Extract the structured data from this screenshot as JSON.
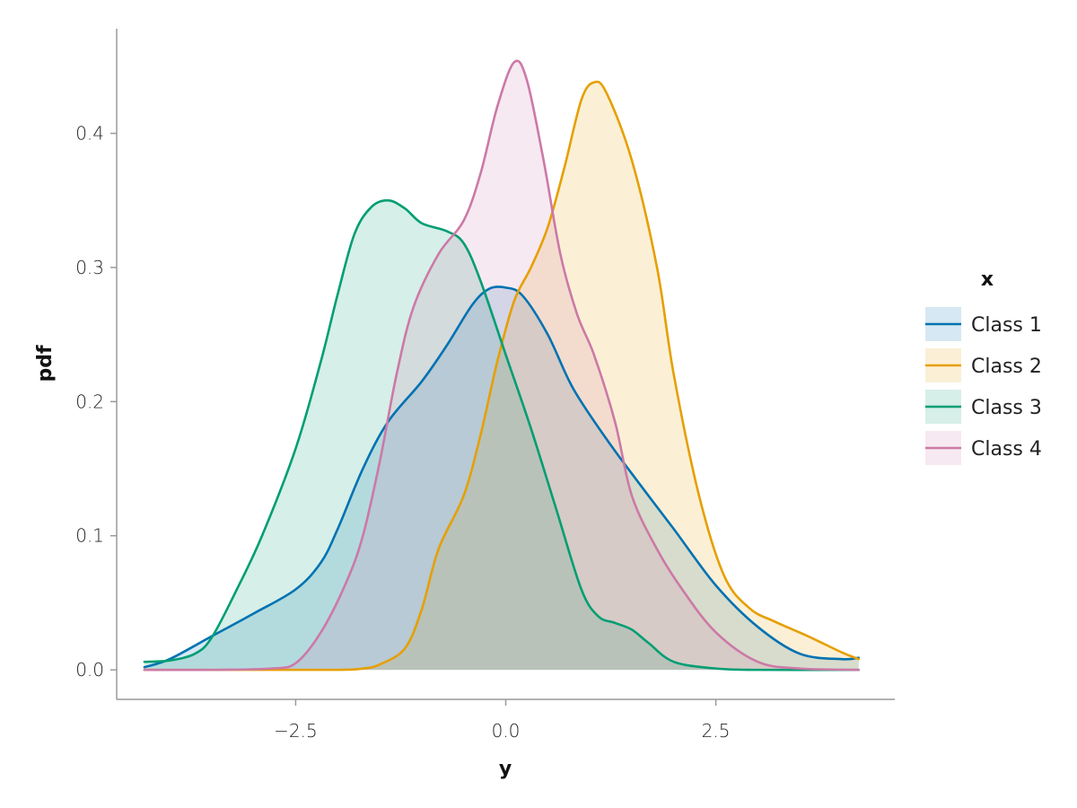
{
  "chart_data": {
    "type": "area",
    "xlabel": "y",
    "ylabel": "pdf",
    "xlim": [
      -4.63,
      4.63
    ],
    "ylim": [
      -0.022,
      0.478
    ],
    "x_ticks": [
      -2.5,
      0.0,
      2.5
    ],
    "x_tick_labels": [
      "−2.5",
      "0.0",
      "2.5"
    ],
    "y_ticks": [
      0.0,
      0.1,
      0.2,
      0.3,
      0.4
    ],
    "y_tick_labels": [
      "0.0",
      "0.1",
      "0.2",
      "0.3",
      "0.4"
    ],
    "grid": false,
    "legend": {
      "title": "x",
      "placement": "right"
    },
    "series": [
      {
        "name": "Class 1",
        "color": "#0072B2",
        "points": [
          [
            -4.3,
            0.002
          ],
          [
            -4.0,
            0.008
          ],
          [
            -3.5,
            0.025
          ],
          [
            -3.0,
            0.042
          ],
          [
            -2.5,
            0.06
          ],
          [
            -2.2,
            0.08
          ],
          [
            -2.0,
            0.105
          ],
          [
            -1.7,
            0.15
          ],
          [
            -1.4,
            0.185
          ],
          [
            -1.0,
            0.215
          ],
          [
            -0.7,
            0.242
          ],
          [
            -0.4,
            0.272
          ],
          [
            -0.2,
            0.284
          ],
          [
            0.0,
            0.285
          ],
          [
            0.2,
            0.279
          ],
          [
            0.5,
            0.25
          ],
          [
            0.8,
            0.21
          ],
          [
            1.2,
            0.172
          ],
          [
            1.6,
            0.138
          ],
          [
            2.0,
            0.105
          ],
          [
            2.5,
            0.063
          ],
          [
            3.0,
            0.032
          ],
          [
            3.5,
            0.012
          ],
          [
            4.0,
            0.008
          ],
          [
            4.2,
            0.009
          ]
        ]
      },
      {
        "name": "Class 2",
        "color": "#E69F00",
        "points": [
          [
            -4.3,
            0.0
          ],
          [
            -3.0,
            0.0
          ],
          [
            -2.0,
            0.0
          ],
          [
            -1.7,
            0.001
          ],
          [
            -1.5,
            0.004
          ],
          [
            -1.2,
            0.016
          ],
          [
            -1.0,
            0.045
          ],
          [
            -0.8,
            0.09
          ],
          [
            -0.5,
            0.13
          ],
          [
            -0.3,
            0.175
          ],
          [
            -0.1,
            0.23
          ],
          [
            0.1,
            0.275
          ],
          [
            0.3,
            0.3
          ],
          [
            0.5,
            0.33
          ],
          [
            0.7,
            0.375
          ],
          [
            0.9,
            0.425
          ],
          [
            1.05,
            0.438
          ],
          [
            1.2,
            0.43
          ],
          [
            1.5,
            0.38
          ],
          [
            1.8,
            0.3
          ],
          [
            2.0,
            0.22
          ],
          [
            2.3,
            0.13
          ],
          [
            2.6,
            0.07
          ],
          [
            2.9,
            0.046
          ],
          [
            3.2,
            0.036
          ],
          [
            3.6,
            0.025
          ],
          [
            4.0,
            0.013
          ],
          [
            4.2,
            0.008
          ]
        ]
      },
      {
        "name": "Class 3",
        "color": "#009E73",
        "points": [
          [
            -4.3,
            0.006
          ],
          [
            -4.0,
            0.007
          ],
          [
            -3.7,
            0.012
          ],
          [
            -3.5,
            0.024
          ],
          [
            -3.2,
            0.06
          ],
          [
            -2.9,
            0.1
          ],
          [
            -2.5,
            0.165
          ],
          [
            -2.2,
            0.23
          ],
          [
            -2.0,
            0.28
          ],
          [
            -1.8,
            0.325
          ],
          [
            -1.6,
            0.345
          ],
          [
            -1.4,
            0.35
          ],
          [
            -1.2,
            0.344
          ],
          [
            -1.0,
            0.333
          ],
          [
            -0.7,
            0.327
          ],
          [
            -0.5,
            0.318
          ],
          [
            -0.3,
            0.29
          ],
          [
            0.0,
            0.235
          ],
          [
            0.3,
            0.18
          ],
          [
            0.6,
            0.12
          ],
          [
            0.9,
            0.06
          ],
          [
            1.1,
            0.04
          ],
          [
            1.3,
            0.035
          ],
          [
            1.5,
            0.03
          ],
          [
            1.7,
            0.02
          ],
          [
            2.0,
            0.006
          ],
          [
            2.5,
            0.001
          ],
          [
            3.0,
            0.0
          ],
          [
            4.2,
            0.0
          ]
        ]
      },
      {
        "name": "Class 4",
        "color": "#CC79A7",
        "points": [
          [
            -4.3,
            0.0
          ],
          [
            -3.5,
            0.0
          ],
          [
            -2.8,
            0.001
          ],
          [
            -2.5,
            0.005
          ],
          [
            -2.2,
            0.028
          ],
          [
            -1.9,
            0.065
          ],
          [
            -1.7,
            0.1
          ],
          [
            -1.5,
            0.155
          ],
          [
            -1.3,
            0.22
          ],
          [
            -1.1,
            0.27
          ],
          [
            -0.8,
            0.31
          ],
          [
            -0.5,
            0.335
          ],
          [
            -0.3,
            0.37
          ],
          [
            -0.1,
            0.42
          ],
          [
            0.1,
            0.453
          ],
          [
            0.25,
            0.44
          ],
          [
            0.45,
            0.38
          ],
          [
            0.65,
            0.31
          ],
          [
            0.85,
            0.265
          ],
          [
            1.05,
            0.235
          ],
          [
            1.3,
            0.185
          ],
          [
            1.5,
            0.13
          ],
          [
            1.8,
            0.09
          ],
          [
            2.1,
            0.06
          ],
          [
            2.5,
            0.028
          ],
          [
            3.0,
            0.006
          ],
          [
            3.5,
            0.001
          ],
          [
            4.2,
            0.0
          ]
        ]
      }
    ]
  }
}
